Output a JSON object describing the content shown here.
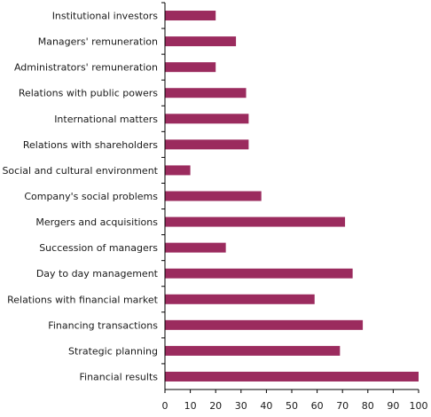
{
  "chart_data": {
    "type": "bar",
    "orientation": "horizontal",
    "categories": [
      "Institutional investors",
      "Managers' remuneration",
      "Administrators' remuneration",
      "Relations with public powers",
      "International matters",
      "Relations with shareholders",
      "Social and cultural environment",
      "Company's social problems",
      "Mergers and acquisitions",
      "Succession of managers",
      "Day to day management",
      "Relations with financial market",
      "Financing transactions",
      "Strategic planning",
      "Financial results"
    ],
    "values": [
      20,
      28,
      20,
      32,
      33,
      33,
      10,
      38,
      71,
      24,
      74,
      59,
      78,
      69,
      100
    ],
    "xlim": [
      0,
      100
    ],
    "xticks": [
      0,
      10,
      20,
      30,
      40,
      50,
      60,
      70,
      80,
      90,
      100
    ],
    "grid": false,
    "legend": "none",
    "bar_color": "#9b2b5e",
    "axis_color": "#000000"
  }
}
